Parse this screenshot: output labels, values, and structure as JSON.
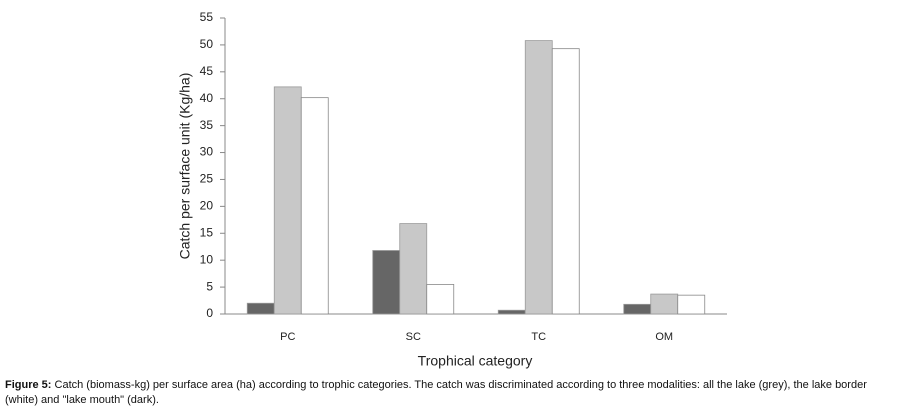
{
  "chart_data": {
    "type": "bar",
    "y_label": "Catch per surface unit (Kg/ha)",
    "x_label": "Trophical category",
    "categories": [
      "PC",
      "SC",
      "TC",
      "OM"
    ],
    "series": [
      {
        "color": "#666666",
        "values": [
          2,
          11.8,
          0.7,
          1.8
        ]
      },
      {
        "color": "#c8c8c8",
        "values": [
          42.2,
          16.8,
          50.8,
          3.7
        ]
      },
      {
        "color": "#ffffff",
        "values": [
          40.2,
          5.5,
          49.3,
          3.5
        ]
      }
    ],
    "ylim": [
      0,
      55
    ],
    "yticks": [
      0,
      5,
      10,
      15,
      20,
      25,
      30,
      35,
      40,
      45,
      50,
      55
    ],
    "grid": false,
    "caption_label": "Figure 5:",
    "caption": "Catch (biomass-kg) per surface area (ha) according to trophic categories. The catch was discriminated according to three modalities: all the lake (grey), the lake border (white) and \"lake mouth\" (dark)."
  }
}
